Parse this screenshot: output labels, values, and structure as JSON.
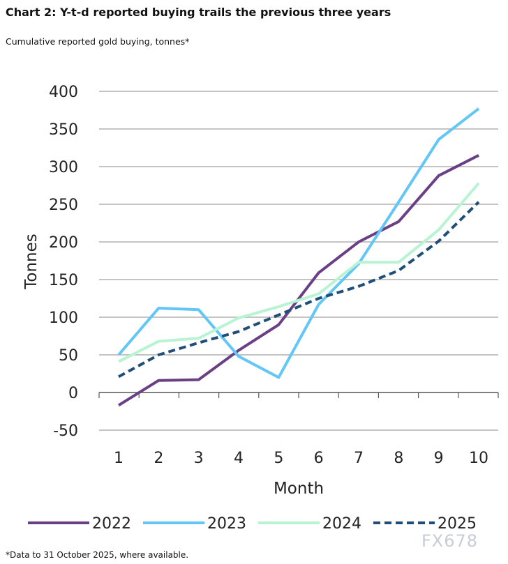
{
  "title": "Chart 2: Y-t-d reported buying trails the previous three years",
  "subtitle": "Cumulative reported gold buying, tonnes*",
  "footnote": "*Data to 31 October 2025, where available.",
  "watermark": "FX678",
  "chart_data": {
    "type": "line",
    "title": "Chart 2: Y-t-d reported buying trails the previous three years",
    "xlabel": "Month",
    "ylabel": "Tonnes",
    "x": [
      1,
      2,
      3,
      4,
      5,
      6,
      7,
      8,
      9,
      10
    ],
    "ylim": [
      -50,
      400
    ],
    "yticks": [
      -50,
      0,
      50,
      100,
      150,
      200,
      250,
      300,
      350,
      400
    ],
    "grid": true,
    "legend": "bottom",
    "series": [
      {
        "name": "2022",
        "color": "#6b3f86",
        "dash": false,
        "values": [
          -17,
          16,
          17,
          56,
          90,
          159,
          200,
          227,
          288,
          315
        ]
      },
      {
        "name": "2023",
        "color": "#62c6f6",
        "dash": false,
        "values": [
          50,
          112,
          110,
          48,
          20,
          117,
          171,
          253,
          336,
          377
        ]
      },
      {
        "name": "2024",
        "color": "#b8f4d4",
        "dash": false,
        "values": [
          41,
          68,
          72,
          99,
          114,
          131,
          173,
          173,
          216,
          278
        ]
      },
      {
        "name": "2025",
        "color": "#1f4e79",
        "dash": true,
        "values": [
          21,
          50,
          66,
          81,
          103,
          125,
          141,
          162,
          201,
          253
        ]
      }
    ]
  }
}
